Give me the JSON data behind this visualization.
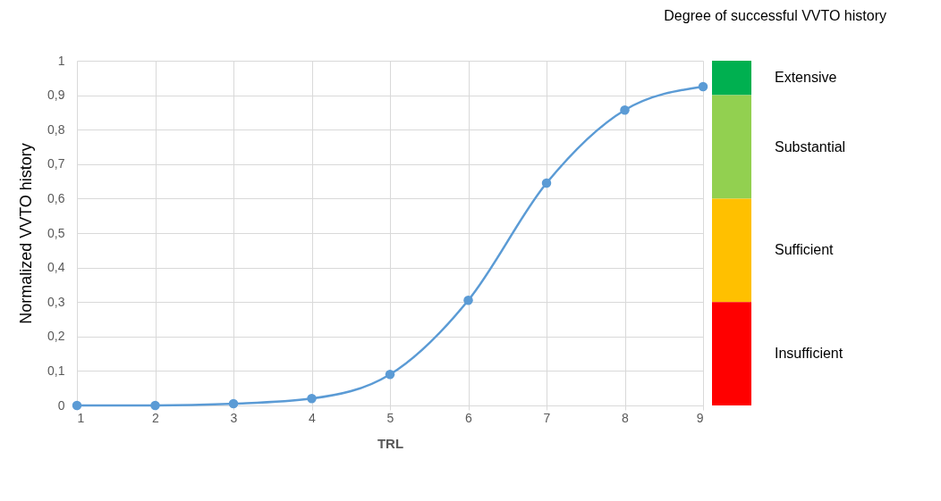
{
  "chart_data": {
    "type": "line",
    "xlabel": "TRL",
    "ylabel": "Normalized VVTO history",
    "annotations": [
      "Degree of successful VVTO history",
      "Extensive",
      "Substantial",
      "Sufficient",
      "Insufficient"
    ],
    "x": [
      1,
      2,
      3,
      4,
      5,
      6,
      7,
      8,
      9
    ],
    "series": [
      {
        "color": "#5b9bd5",
        "values": [
          0,
          0,
          0.005,
          0.02,
          0.09,
          0.305,
          0.645,
          0.857,
          0.925
        ]
      }
    ],
    "xlim": [
      1,
      9
    ],
    "xticks": [
      1,
      2,
      3,
      4,
      5,
      6,
      7,
      8,
      9
    ],
    "ylim": [
      0,
      1
    ],
    "yticks": [
      0,
      {
        "value": 0.1,
        "label": "0,1"
      },
      {
        "value": 0.2,
        "label": "0,2"
      },
      {
        "value": 0.3,
        "label": "0,3"
      },
      {
        "value": 0.4,
        "label": "0,4"
      },
      {
        "value": 0.5,
        "label": "0,5"
      },
      {
        "value": 0.6,
        "label": "0,6"
      },
      {
        "value": 0.7,
        "label": "0,7"
      },
      {
        "value": 0.8,
        "label": "0,8"
      },
      {
        "value": 0.9,
        "label": "0,9"
      },
      1
    ],
    "grid": true,
    "marker": "circle",
    "line_style": "solid"
  }
}
